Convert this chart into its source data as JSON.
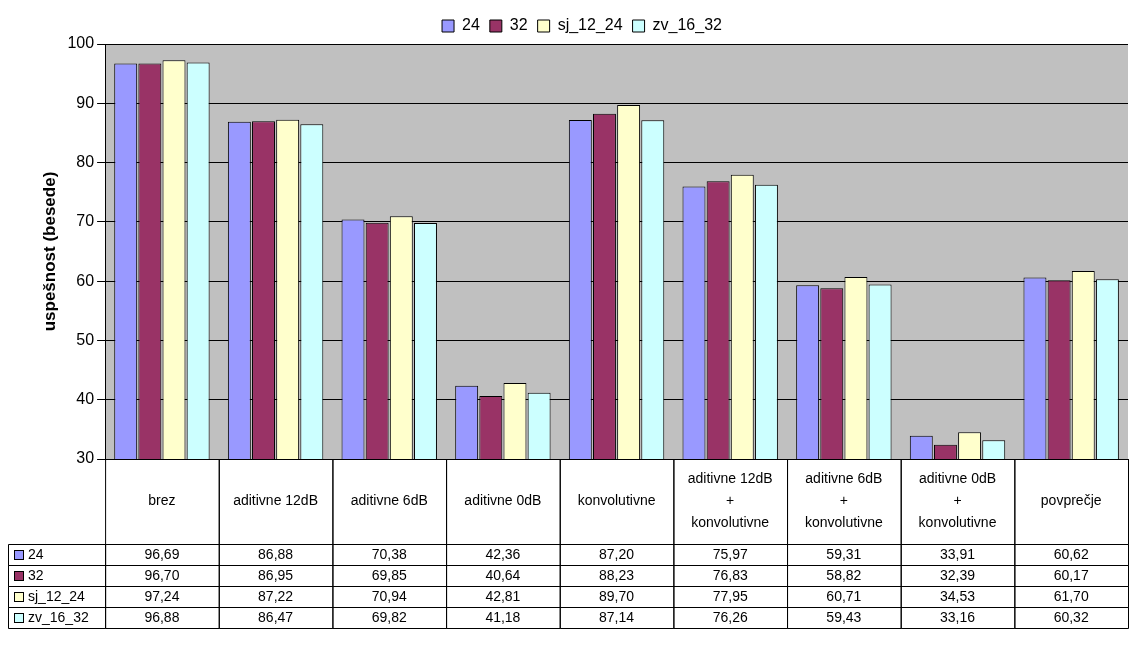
{
  "chart_data": {
    "type": "bar",
    "ylabel": "uspešnost (besede)",
    "categories": [
      "brez",
      "aditivne 12dB",
      "aditivne 6dB",
      "aditivne 0dB",
      "konvolutivne",
      "aditivne 12dB + konvolutivne",
      "aditivne 6dB + konvolutivne",
      "aditivne 0dB + konvolutivne",
      "povprečje"
    ],
    "series": [
      {
        "name": "24",
        "color": "#9999ff",
        "values": [
          96.69,
          86.88,
          70.38,
          42.36,
          87.2,
          75.97,
          59.31,
          33.91,
          60.62
        ],
        "value_labels": [
          "96,69",
          "86,88",
          "70,38",
          "42,36",
          "87,20",
          "75,97",
          "59,31",
          "33,91",
          "60,62"
        ]
      },
      {
        "name": "32",
        "color": "#993366",
        "values": [
          96.7,
          86.95,
          69.85,
          40.64,
          88.23,
          76.83,
          58.82,
          32.39,
          60.17
        ],
        "value_labels": [
          "96,70",
          "86,95",
          "69,85",
          "40,64",
          "88,23",
          "76,83",
          "58,82",
          "32,39",
          "60,17"
        ]
      },
      {
        "name": "sj_12_24",
        "color": "#ffffcc",
        "values": [
          97.24,
          87.22,
          70.94,
          42.81,
          89.7,
          77.95,
          60.71,
          34.53,
          61.7
        ],
        "value_labels": [
          "97,24",
          "87,22",
          "70,94",
          "42,81",
          "89,70",
          "77,95",
          "60,71",
          "34,53",
          "61,70"
        ]
      },
      {
        "name": "zv_16_32",
        "color": "#ccffff",
        "values": [
          96.88,
          86.47,
          69.82,
          41.18,
          87.14,
          76.26,
          59.43,
          33.16,
          60.32
        ],
        "value_labels": [
          "96,88",
          "86,47",
          "69,82",
          "41,18",
          "87,14",
          "76,26",
          "59,43",
          "33,16",
          "60,32"
        ]
      }
    ],
    "ylim": [
      30,
      100
    ],
    "yticks": [
      30,
      40,
      50,
      60,
      70,
      80,
      90,
      100
    ],
    "grid": "y",
    "legend": "top"
  }
}
